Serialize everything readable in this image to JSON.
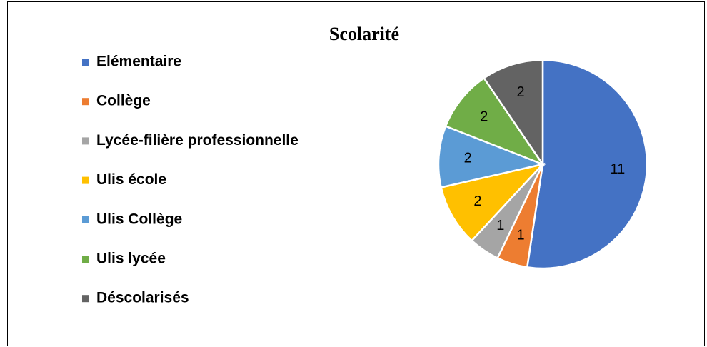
{
  "chart_data": {
    "type": "pie",
    "title": "Scolarité",
    "categories": [
      "Elémentaire",
      "Collège",
      "Lycée-filière professionnelle",
      "Ulis école",
      "Ulis Collège",
      "Ulis lycée",
      "Déscolarisés"
    ],
    "values": [
      11,
      1,
      1,
      2,
      2,
      2,
      2
    ],
    "colors": [
      "#4472c4",
      "#ed7d31",
      "#a5a5a5",
      "#ffc000",
      "#5b9bd5",
      "#70ad47",
      "#636363"
    ],
    "legend": "left"
  }
}
